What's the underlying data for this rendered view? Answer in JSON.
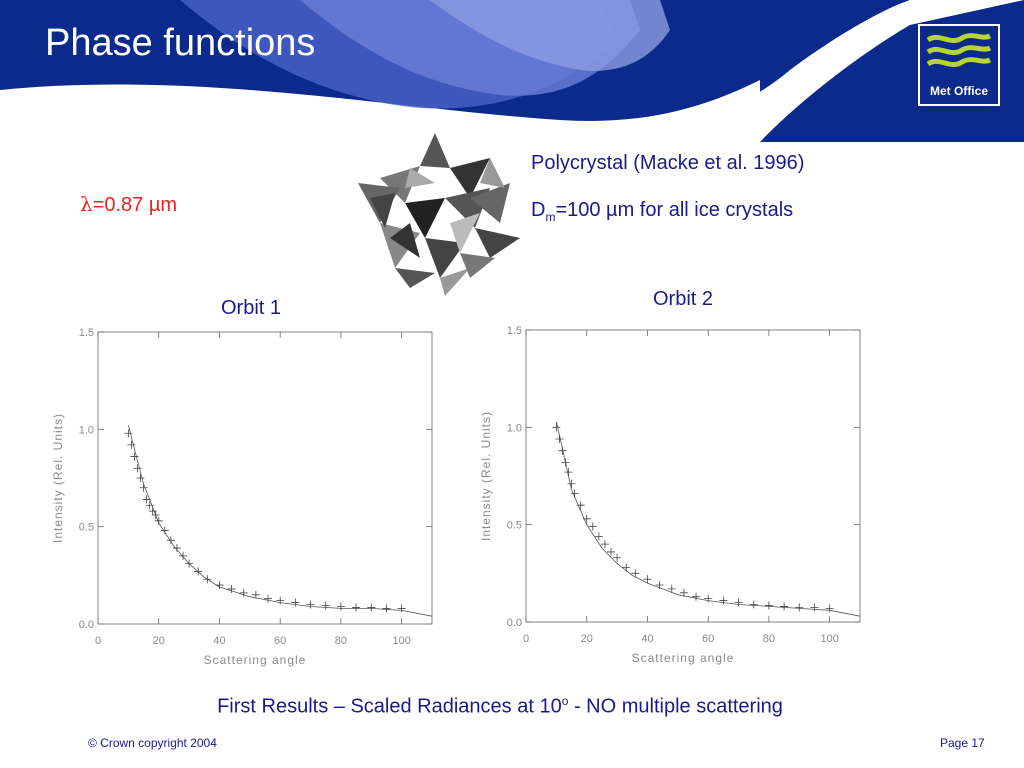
{
  "slide": {
    "title": "Phase functions",
    "logo_text": "Met Office",
    "wavelength_symbol": "λ",
    "wavelength_rest": "=0.87 µm",
    "crystal_desc": "Polycrystal (Macke et al. 1996)",
    "diameter_prefix": "D",
    "diameter_sub": "m",
    "diameter_rest": "=100 µm for all ice crystals",
    "caption_main": "First Results – Scaled Radiances at 10",
    "caption_sup": "o",
    "caption_rest": " - NO multiple scattering",
    "copyright": "© Crown copyright 2004",
    "page": "Page 17"
  },
  "colors": {
    "banner": "#0b2a8c",
    "accent_text": "#1a1a8c",
    "lambda_text": "#e8201f",
    "logo_waves": "#b7d433"
  },
  "chart_data": [
    {
      "type": "scatter",
      "title": "Orbit 1",
      "xlabel": "Scattering angle",
      "ylabel": "Intensity (Rel. Units)",
      "xlim": [
        0,
        110
      ],
      "ylim": [
        0,
        1.5
      ],
      "xticks": [
        "0",
        "20",
        "40",
        "60",
        "80",
        "100"
      ],
      "yticks": [
        "0.0",
        "0.5",
        "1.0",
        "1.5"
      ],
      "series": [
        {
          "values_x": [
            10,
            11,
            12,
            13,
            14,
            15,
            16,
            17,
            18,
            19,
            20,
            22,
            24,
            26,
            28,
            30,
            33,
            36,
            40,
            44,
            48,
            52,
            56,
            60,
            65,
            70,
            75,
            80,
            85,
            90,
            95,
            100
          ],
          "values_y": [
            0.98,
            0.92,
            0.86,
            0.8,
            0.75,
            0.7,
            0.64,
            0.61,
            0.58,
            0.56,
            0.53,
            0.48,
            0.43,
            0.39,
            0.35,
            0.31,
            0.27,
            0.23,
            0.2,
            0.18,
            0.16,
            0.15,
            0.13,
            0.12,
            0.11,
            0.1,
            0.095,
            0.09,
            0.085,
            0.085,
            0.08,
            0.08
          ]
        },
        {
          "values_x": [
            10,
            15,
            20,
            25,
            30,
            35,
            40,
            50,
            60,
            70,
            80,
            90,
            100,
            110
          ],
          "values_y": [
            1.02,
            0.72,
            0.52,
            0.4,
            0.31,
            0.24,
            0.19,
            0.14,
            0.11,
            0.09,
            0.08,
            0.08,
            0.07,
            0.04
          ]
        }
      ]
    },
    {
      "type": "scatter",
      "title": "Orbit 2",
      "xlabel": "Scattering angle",
      "ylabel": "Intensity (Rel. Units)",
      "xlim": [
        0,
        110
      ],
      "ylim": [
        0,
        1.5
      ],
      "xticks": [
        "0",
        "20",
        "40",
        "60",
        "80",
        "100"
      ],
      "yticks": [
        "0.0",
        "0.5",
        "1.0",
        "1.5"
      ],
      "series": [
        {
          "values_x": [
            10,
            11,
            12,
            13,
            14,
            15,
            16,
            18,
            20,
            22,
            24,
            26,
            28,
            30,
            33,
            36,
            40,
            44,
            48,
            52,
            56,
            60,
            65,
            70,
            75,
            80,
            85,
            90,
            95,
            100
          ],
          "values_y": [
            1.0,
            0.94,
            0.88,
            0.82,
            0.77,
            0.71,
            0.66,
            0.6,
            0.53,
            0.49,
            0.44,
            0.4,
            0.36,
            0.33,
            0.28,
            0.25,
            0.22,
            0.19,
            0.17,
            0.15,
            0.13,
            0.12,
            0.11,
            0.1,
            0.09,
            0.085,
            0.08,
            0.075,
            0.075,
            0.07
          ]
        },
        {
          "values_x": [
            10,
            15,
            20,
            25,
            30,
            35,
            40,
            50,
            60,
            70,
            80,
            90,
            100,
            110
          ],
          "values_y": [
            1.03,
            0.68,
            0.5,
            0.38,
            0.3,
            0.24,
            0.2,
            0.14,
            0.11,
            0.09,
            0.08,
            0.07,
            0.06,
            0.03
          ]
        }
      ]
    }
  ]
}
